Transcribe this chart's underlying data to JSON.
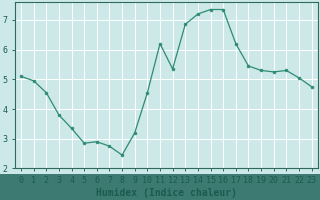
{
  "x": [
    0,
    1,
    2,
    3,
    4,
    5,
    6,
    7,
    8,
    9,
    10,
    11,
    12,
    13,
    14,
    15,
    16,
    17,
    18,
    19,
    20,
    21,
    22,
    23
  ],
  "y": [
    5.1,
    4.95,
    4.55,
    3.8,
    3.35,
    2.85,
    2.9,
    2.75,
    2.45,
    3.2,
    4.55,
    6.2,
    5.35,
    6.85,
    7.2,
    7.35,
    7.35,
    6.2,
    5.45,
    5.3,
    5.25,
    5.3,
    5.05,
    4.75
  ],
  "line_color": "#2e8b74",
  "marker": "o",
  "marker_size": 2.0,
  "bg_color": "#cce8e8",
  "grid_color": "#ffffff",
  "xlabel": "Humidex (Indice chaleur)",
  "xlim": [
    -0.5,
    23.5
  ],
  "ylim": [
    2.0,
    7.6
  ],
  "yticks": [
    2,
    3,
    4,
    5,
    6,
    7
  ],
  "xticks": [
    0,
    1,
    2,
    3,
    4,
    5,
    6,
    7,
    8,
    9,
    10,
    11,
    12,
    13,
    14,
    15,
    16,
    17,
    18,
    19,
    20,
    21,
    22,
    23
  ],
  "tick_label_color": "#1a5c4e",
  "axis_color": "#2e6b5e",
  "font_size": 6,
  "xlabel_fontsize": 7,
  "bottom_bar_color": "#3d7a72",
  "bottom_bar_text_color": "#cce8e8"
}
